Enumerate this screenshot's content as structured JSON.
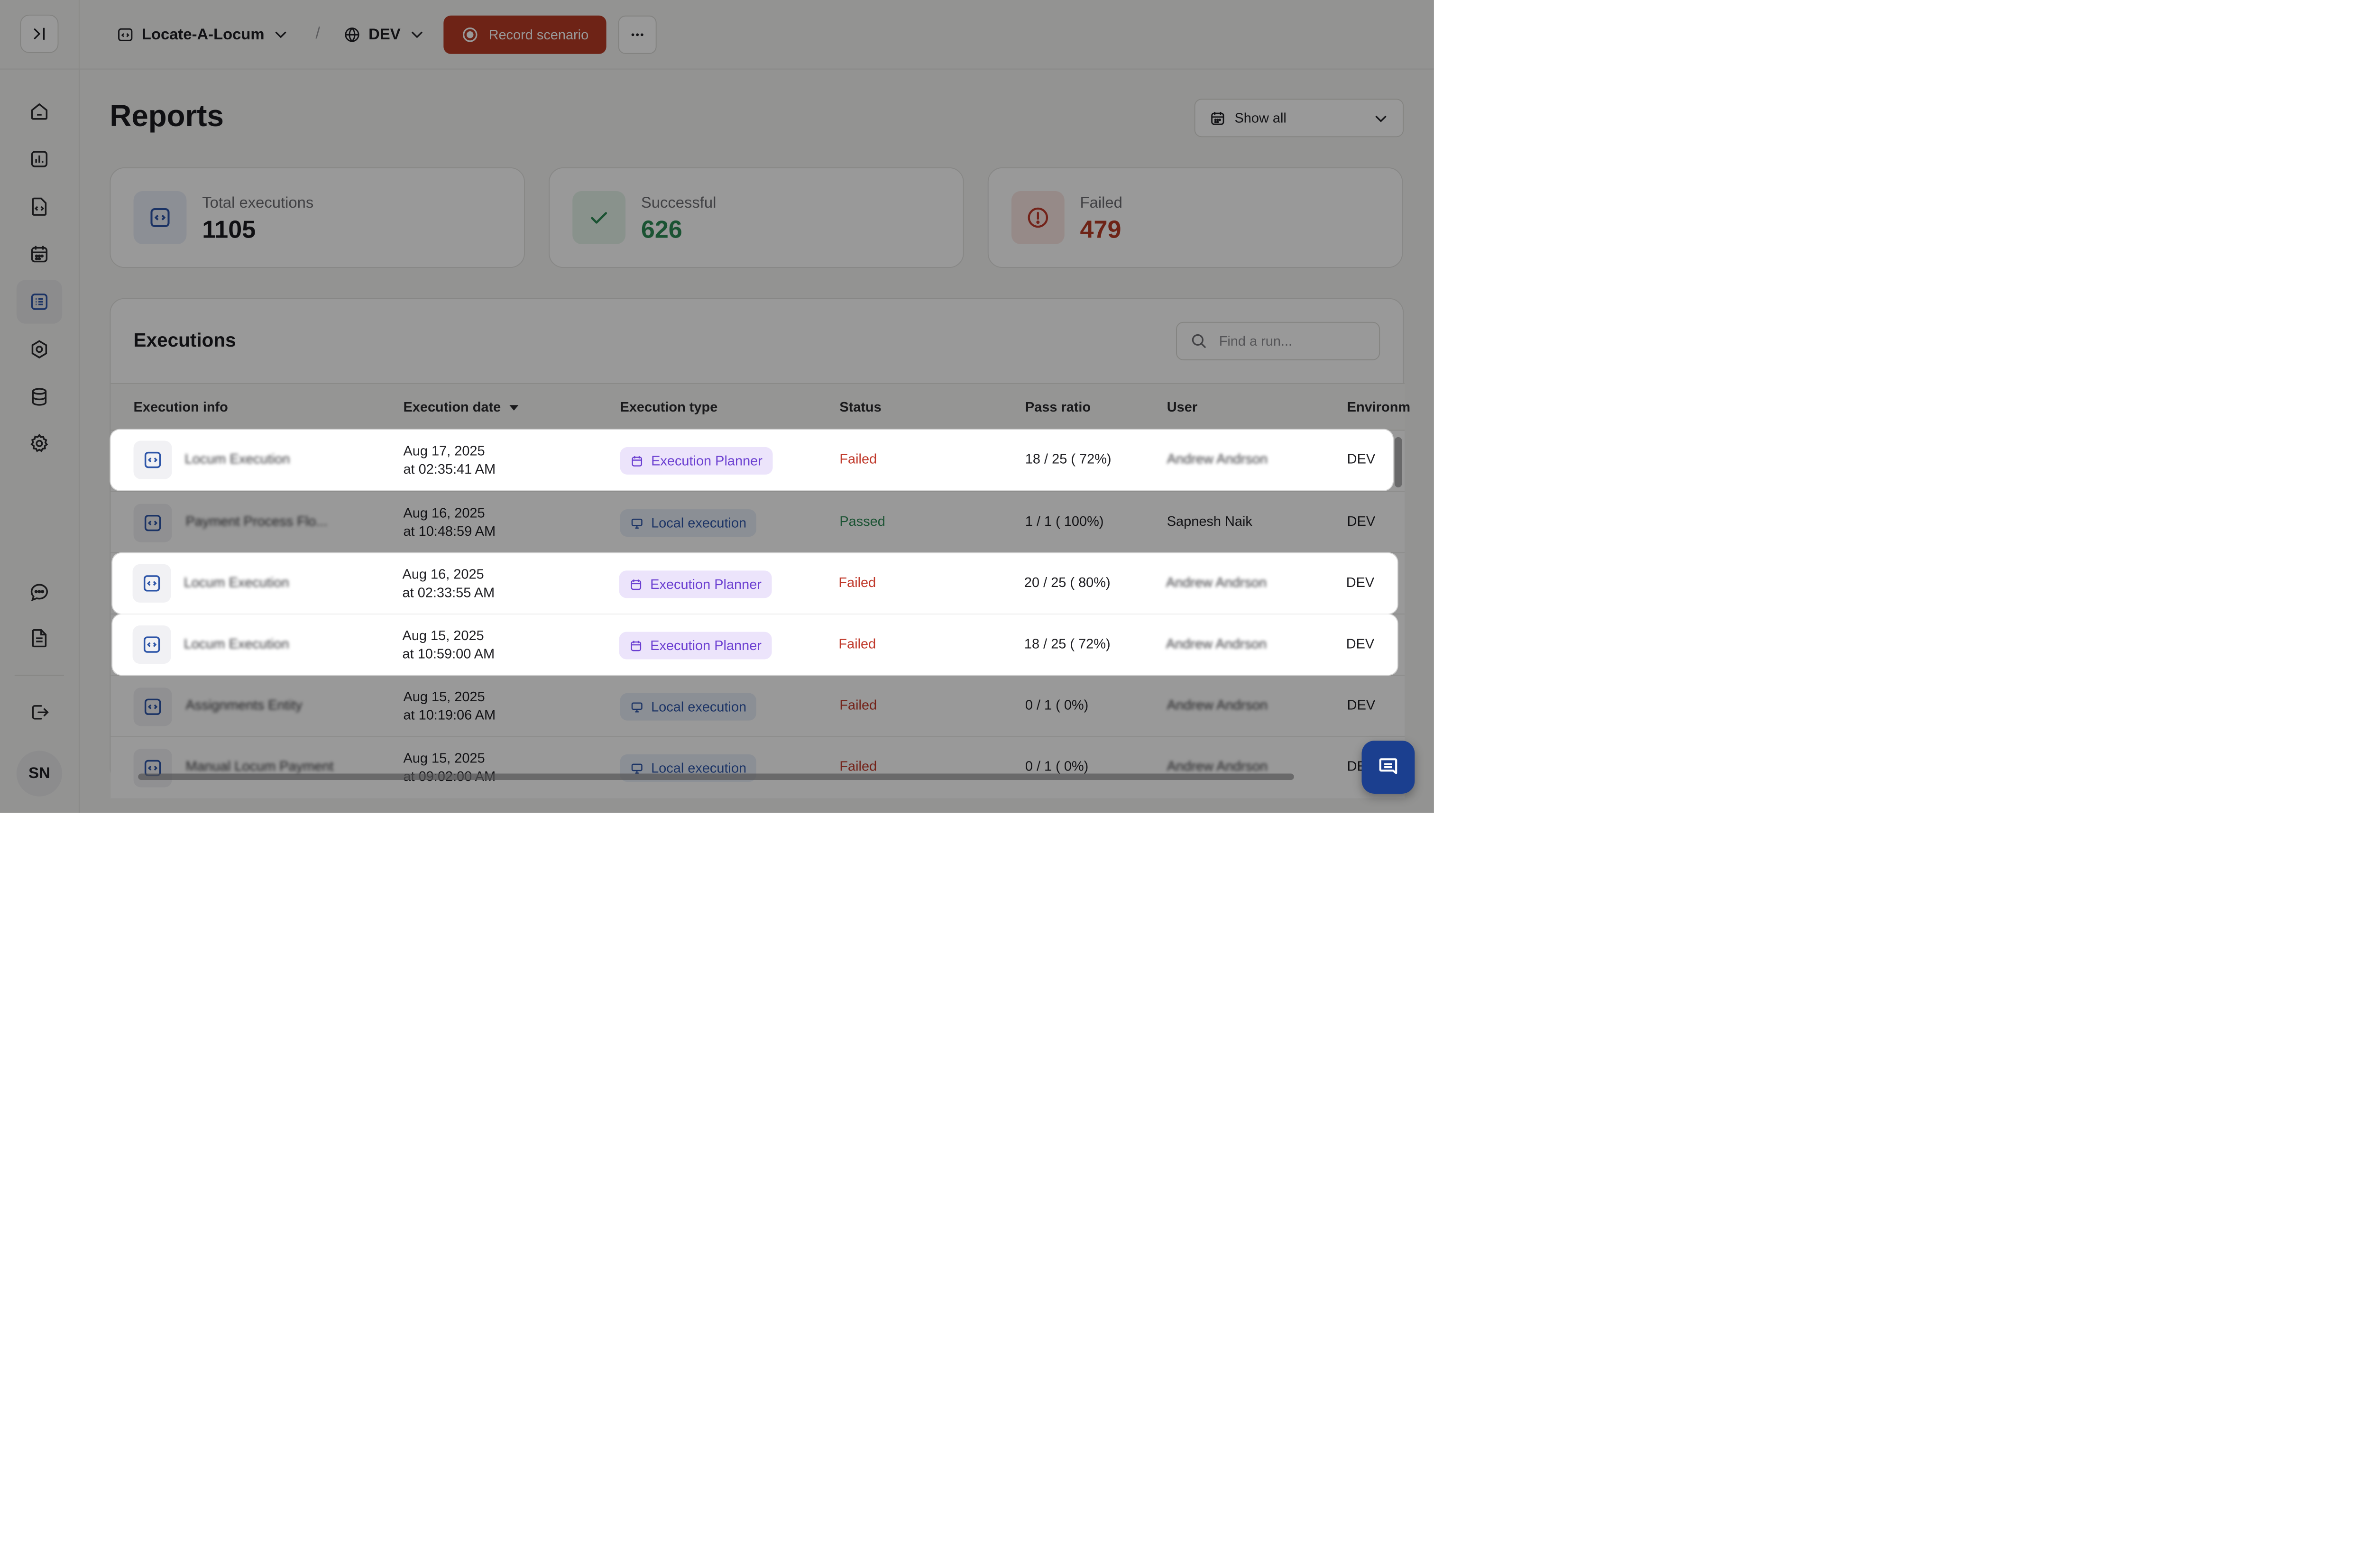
{
  "header": {
    "project": "Locate-A-Locum",
    "separator": "/",
    "environment": "DEV",
    "record_label": "Record scenario"
  },
  "sidebar": {
    "avatar_initials": "SN",
    "items": [
      {
        "name": "home-icon"
      },
      {
        "name": "analytics-icon"
      },
      {
        "name": "scenarios-icon"
      },
      {
        "name": "calendar-icon"
      },
      {
        "name": "reports-icon",
        "active": true
      },
      {
        "name": "integrations-icon"
      },
      {
        "name": "database-icon"
      },
      {
        "name": "settings-icon"
      },
      {
        "name": "chat-icon"
      },
      {
        "name": "docs-icon"
      },
      {
        "name": "logout-icon"
      }
    ]
  },
  "page": {
    "title": "Reports",
    "date_filter": "Show all"
  },
  "stats": {
    "total": {
      "label": "Total executions",
      "value": "1105"
    },
    "successful": {
      "label": "Successful",
      "value": "626"
    },
    "failed": {
      "label": "Failed",
      "value": "479"
    }
  },
  "executions": {
    "title": "Executions",
    "search_placeholder": "Find a run...",
    "columns": [
      "Execution info",
      "Execution date",
      "Execution type",
      "Status",
      "Pass ratio",
      "User",
      "Environm"
    ],
    "rows": [
      {
        "info": "Locum Execution",
        "date_line1": "Aug 17, 2025",
        "date_line2": "at 02:35:41 AM",
        "type": "Execution Planner",
        "status": "Failed",
        "pass_ratio": "18 / 25 ( 72%)",
        "user": "Andrew Andrson",
        "env": "DEV"
      },
      {
        "info": "Payment Process Flo...",
        "date_line1": "Aug 16, 2025",
        "date_line2": "at 10:48:59 AM",
        "type": "Local execution",
        "status": "Passed",
        "pass_ratio": "1 / 1 ( 100%)",
        "user": "Sapnesh Naik",
        "env": "DEV"
      },
      {
        "info": "Locum Execution",
        "date_line1": "Aug 16, 2025",
        "date_line2": "at 02:33:55 AM",
        "type": "Execution Planner",
        "status": "Failed",
        "pass_ratio": "20 / 25 ( 80%)",
        "user": "Andrew Andrson",
        "env": "DEV"
      },
      {
        "info": "Locum Execution",
        "date_line1": "Aug 15, 2025",
        "date_line2": "at 10:59:00 AM",
        "type": "Execution Planner",
        "status": "Failed",
        "pass_ratio": "18 / 25 ( 72%)",
        "user": "Andrew Andrson",
        "env": "DEV"
      },
      {
        "info": "Assignments Entity",
        "date_line1": "Aug 15, 2025",
        "date_line2": "at 10:19:06 AM",
        "type": "Local execution",
        "status": "Failed",
        "pass_ratio": "0 / 1 ( 0%)",
        "user": "Andrew Andrson",
        "env": "DEV"
      },
      {
        "info": "Manual Locum Payment",
        "date_line1": "Aug 15, 2025",
        "date_line2": "at 09:02:00 AM",
        "type": "Local execution",
        "status": "Failed",
        "pass_ratio": "0 / 1 ( 0%)",
        "user": "Andrew Andrson",
        "env": "DE"
      }
    ]
  },
  "colors": {
    "accent_red": "#b83b26",
    "success": "#2e8a56",
    "failed": "#c0392b",
    "planner": "#6b3fd1",
    "local": "#2d55a8",
    "fab": "#1b3f8f"
  }
}
